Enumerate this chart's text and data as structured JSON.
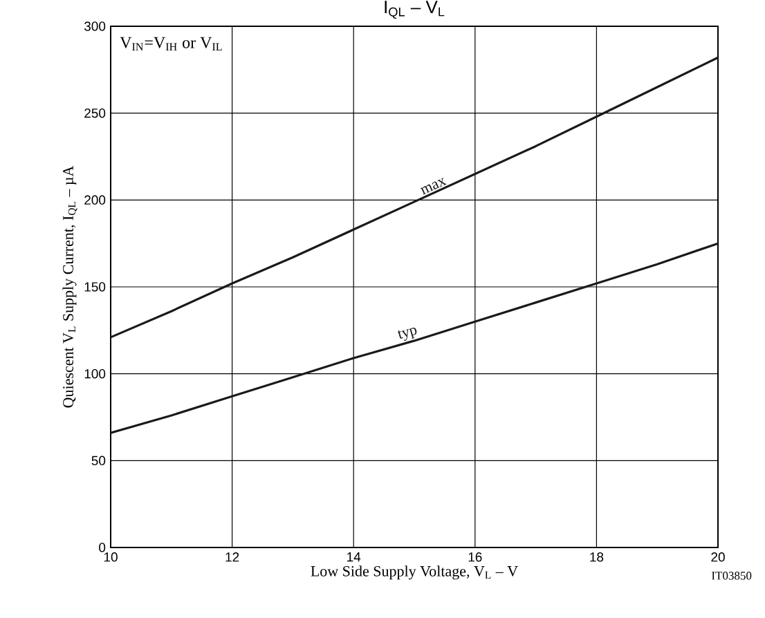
{
  "chart_data": {
    "type": "line",
    "title": "I$_{QL}$ – V$_{L}$",
    "xlabel": "Low Side Supply Voltage, V$_{L}$  –  V",
    "ylabel": "Quiescent V$_{L}$ Supply Current, I$_{QL}$  –  µA",
    "annotations": [
      "V$_{IN}$=V$_{IH}$ or V$_{IL}$",
      "IT03850"
    ],
    "x": [
      10,
      11,
      12,
      13,
      14,
      15,
      16,
      17,
      18,
      19,
      20
    ],
    "series": [
      {
        "name": "max",
        "color": "#1a1a1a",
        "values": [
          121,
          136,
          152,
          167,
          183,
          199,
          215,
          231,
          248,
          265,
          282
        ]
      },
      {
        "name": "typ",
        "color": "#1a1a1a",
        "values": [
          66,
          76,
          87,
          98,
          109,
          119,
          130,
          141,
          152,
          163,
          175
        ]
      }
    ],
    "xlim": [
      10,
      20
    ],
    "ylim": [
      0,
      300
    ],
    "xticks": [
      10,
      12,
      14,
      16,
      18,
      20
    ],
    "yticks": [
      0,
      50,
      100,
      150,
      200,
      250,
      300
    ],
    "grid": true,
    "legend": false,
    "marker": "none",
    "line_style": "solid"
  }
}
